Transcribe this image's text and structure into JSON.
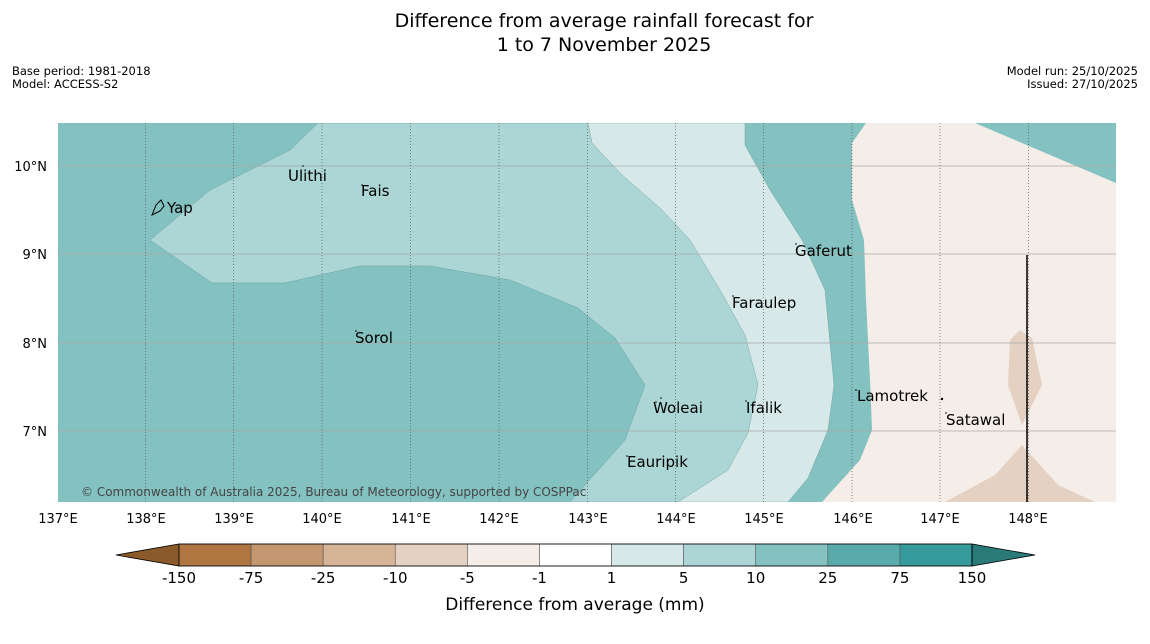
{
  "title": {
    "line1": "Difference from average rainfall forecast for",
    "line2": "1 to 7 November 2025"
  },
  "meta": {
    "base_period": "Base period: 1981-2018",
    "model": "Model: ACCESS-S2",
    "model_run": "Model run: 25/10/2025",
    "issued": "Issued: 27/10/2025"
  },
  "map": {
    "lon_labels": [
      "137°E",
      "138°E",
      "139°E",
      "140°E",
      "141°E",
      "142°E",
      "143°E",
      "144°E",
      "145°E",
      "146°E",
      "147°E",
      "148°E"
    ],
    "lat_labels": [
      "10°N",
      "9°N",
      "8°N",
      "7°N"
    ],
    "places": [
      {
        "name": "Yap"
      },
      {
        "name": "Ulithi"
      },
      {
        "name": "Fais"
      },
      {
        "name": "Gaferut"
      },
      {
        "name": "Faraulep"
      },
      {
        "name": "Sorol"
      },
      {
        "name": "Lamotrek"
      },
      {
        "name": "Woleai"
      },
      {
        "name": "Ifalik"
      },
      {
        "name": "Satawal"
      },
      {
        "name": "Eauripik"
      }
    ],
    "copyright": "© Commonwealth of Australia 2025, Bureau of Meteorology, supported by COSPPac"
  },
  "colorbar": {
    "colors": [
      "#8b5a2b",
      "#b07540",
      "#c49770",
      "#d6b496",
      "#e4d1c2",
      "#f4ede8",
      "#ffffff",
      "#d6e8e8",
      "#acd5d5",
      "#84c1c1",
      "#59abab",
      "#36999a",
      "#2a7a7a"
    ],
    "tick_labels": [
      "-150",
      "-75",
      "-25",
      "-10",
      "-5",
      "-1",
      "1",
      "5",
      "10",
      "25",
      "75",
      "150"
    ],
    "title": "Difference from average (mm)"
  }
}
